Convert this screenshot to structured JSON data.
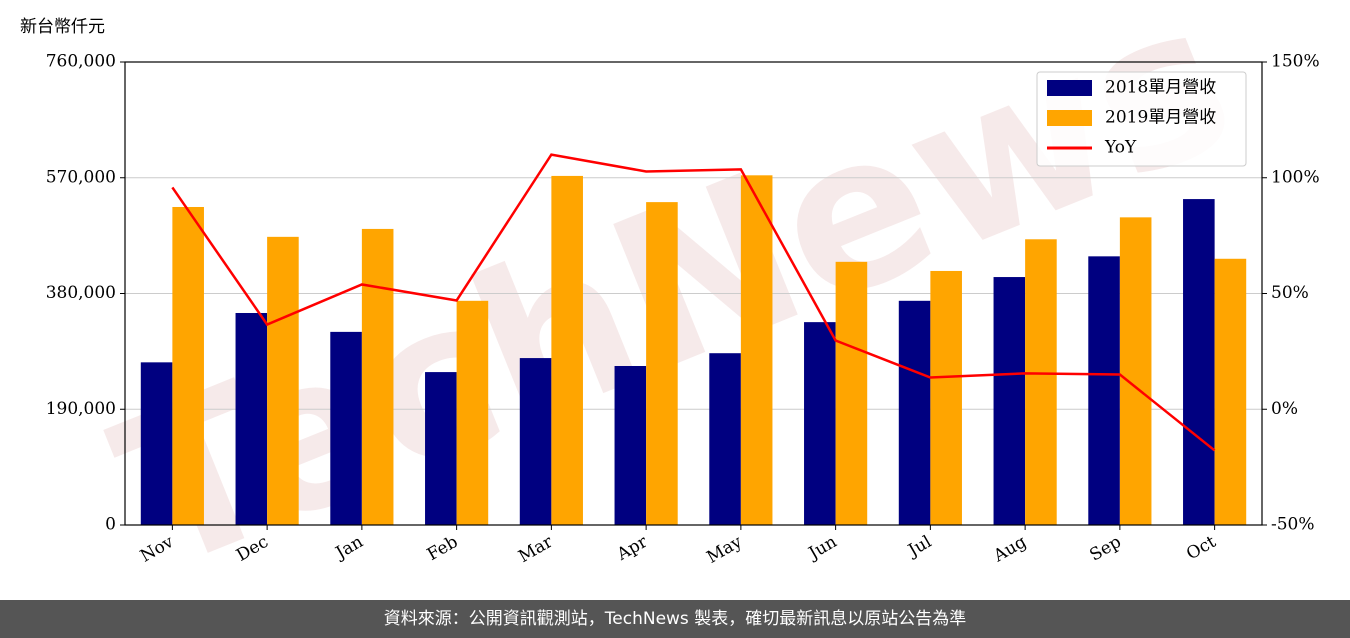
{
  "chart_data": {
    "type": "bar",
    "y_label": "新台幣仟元",
    "watermark": "TechNews",
    "footer": "資料來源：公開資訊觀測站，TechNews 製表，確切最新訊息以原站公告為準",
    "categories": [
      "Nov",
      "Dec",
      "Jan",
      "Feb",
      "Mar",
      "Apr",
      "May",
      "Jun",
      "Jul",
      "Aug",
      "Sep",
      "Oct"
    ],
    "series": [
      {
        "name": "2018單月營收",
        "type": "bar",
        "color": "#000080",
        "values": [
          267000,
          348000,
          317000,
          251000,
          274000,
          261000,
          282000,
          333000,
          368000,
          407000,
          441000,
          535000
        ]
      },
      {
        "name": "2019單月營收",
        "type": "bar",
        "color": "#ffa500",
        "values": [
          522000,
          473000,
          486000,
          368000,
          573000,
          530000,
          574000,
          432000,
          417000,
          469000,
          505000,
          437000
        ]
      },
      {
        "name": "YoY",
        "type": "line",
        "axis": "y2",
        "color": "#ff0000",
        "values": [
          95.8,
          36.6,
          53.9,
          47.0,
          110.0,
          102.7,
          103.6,
          29.7,
          13.7,
          15.5,
          15.0,
          -17.8
        ]
      }
    ],
    "ylim": [
      0,
      760000
    ],
    "yticks": [
      {
        "value": 0,
        "label": "0"
      },
      {
        "value": 190000,
        "label": "190,000"
      },
      {
        "value": 380000,
        "label": "380,000"
      },
      {
        "value": 570000,
        "label": "570,000"
      },
      {
        "value": 760000,
        "label": "760,000"
      }
    ],
    "y2lim": [
      -50,
      150
    ],
    "y2ticks": [
      {
        "value": -50,
        "label": "-50%"
      },
      {
        "value": 0,
        "label": "0%"
      },
      {
        "value": 50,
        "label": "50%"
      },
      {
        "value": 100,
        "label": "100%"
      },
      {
        "value": 150,
        "label": "150%"
      }
    ],
    "grid": true,
    "legend": "upper right"
  }
}
